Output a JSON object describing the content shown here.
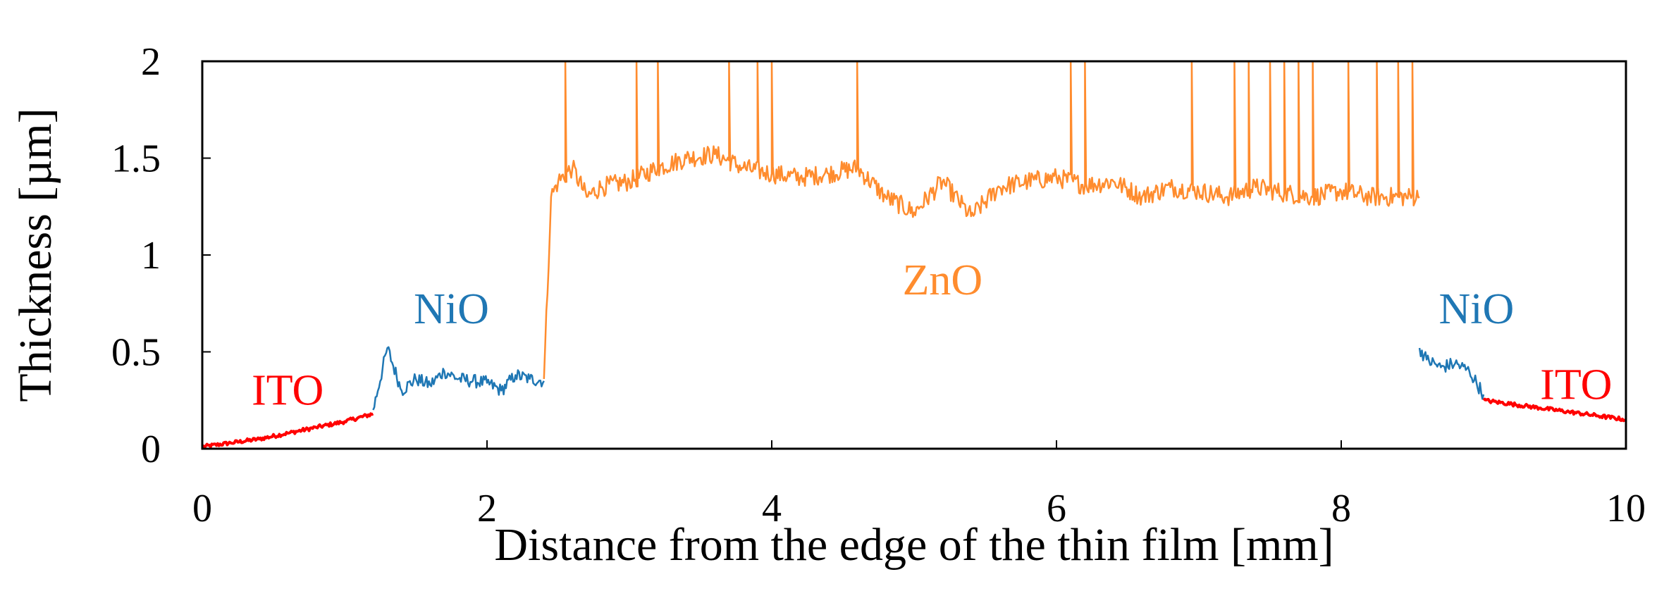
{
  "chart_data": {
    "type": "line",
    "xlabel": "Distance from the edge of the thin film [mm]",
    "ylabel": "Thickness [µm]",
    "xlim": [
      0,
      10
    ],
    "ylim": [
      0,
      2
    ],
    "x_ticks": [
      "0",
      "2",
      "4",
      "6",
      "8",
      "10"
    ],
    "y_ticks": [
      "0",
      "0.5",
      "1",
      "1.5",
      "2"
    ],
    "grid": false,
    "colors": {
      "ITO": "#ff0000",
      "NiO": "#1f77b4",
      "ZnO": "#ff8c2e"
    },
    "series": [
      {
        "layer": "ITO",
        "color": "#ff0000",
        "x": [
          0.0,
          0.2,
          0.4,
          0.6,
          0.8,
          1.0,
          1.2
        ],
        "y": [
          0.01,
          0.03,
          0.05,
          0.08,
          0.11,
          0.14,
          0.18
        ]
      },
      {
        "layer": "NiO",
        "color": "#1f77b4",
        "x": [
          1.2,
          1.3,
          1.4,
          1.5,
          1.6,
          1.7,
          1.8,
          1.9,
          2.0,
          2.1,
          2.2,
          2.3,
          2.4
        ],
        "y": [
          0.2,
          0.52,
          0.3,
          0.36,
          0.33,
          0.4,
          0.36,
          0.35,
          0.34,
          0.3,
          0.38,
          0.36,
          0.35
        ]
      },
      {
        "layer": "ZnO",
        "color": "#ff8c2e",
        "x": [
          2.4,
          2.45,
          2.5,
          2.6,
          2.7,
          2.8,
          3.0,
          3.2,
          3.4,
          3.6,
          3.8,
          4.0,
          4.2,
          4.4,
          4.6,
          4.8,
          5.0,
          5.2,
          5.4,
          5.6,
          5.8,
          6.0,
          6.2,
          6.4,
          6.6,
          6.8,
          7.0,
          7.2,
          7.4,
          7.6,
          7.8,
          8.0,
          8.2,
          8.4,
          8.55
        ],
        "y": [
          0.36,
          1.3,
          1.38,
          1.45,
          1.3,
          1.35,
          1.38,
          1.45,
          1.5,
          1.52,
          1.45,
          1.42,
          1.4,
          1.42,
          1.45,
          1.3,
          1.22,
          1.38,
          1.2,
          1.35,
          1.38,
          1.4,
          1.36,
          1.38,
          1.3,
          1.35,
          1.33,
          1.3,
          1.35,
          1.32,
          1.3,
          1.33,
          1.3,
          1.3,
          1.3
        ],
        "spikes": [
          2.55,
          3.05,
          3.2,
          3.7,
          3.9,
          4.0,
          4.6,
          6.1,
          6.2,
          6.95,
          7.25,
          7.35,
          7.5,
          7.6,
          7.7,
          7.8,
          8.05,
          8.25,
          8.4,
          8.5
        ]
      },
      {
        "layer": "NiO",
        "color": "#1f77b4",
        "x": [
          8.55,
          8.6,
          8.7,
          8.8,
          8.9,
          9.0
        ],
        "y": [
          0.52,
          0.46,
          0.42,
          0.44,
          0.4,
          0.28
        ]
      },
      {
        "layer": "ITO",
        "color": "#ff0000",
        "x": [
          9.0,
          9.2,
          9.4,
          9.6,
          9.8,
          10.0
        ],
        "y": [
          0.25,
          0.23,
          0.21,
          0.19,
          0.17,
          0.15
        ]
      }
    ],
    "annotations": [
      {
        "text": "ITO",
        "color": "#ff0000",
        "x": 0.6,
        "y": 0.3
      },
      {
        "text": "NiO",
        "color": "#1f77b4",
        "x": 1.75,
        "y": 0.72
      },
      {
        "text": "ZnO",
        "color": "#ff8c2e",
        "x": 5.2,
        "y": 0.87
      },
      {
        "text": "NiO",
        "color": "#1f77b4",
        "x": 8.95,
        "y": 0.72
      },
      {
        "text": "ITO",
        "color": "#ff0000",
        "x": 9.65,
        "y": 0.33
      }
    ]
  }
}
